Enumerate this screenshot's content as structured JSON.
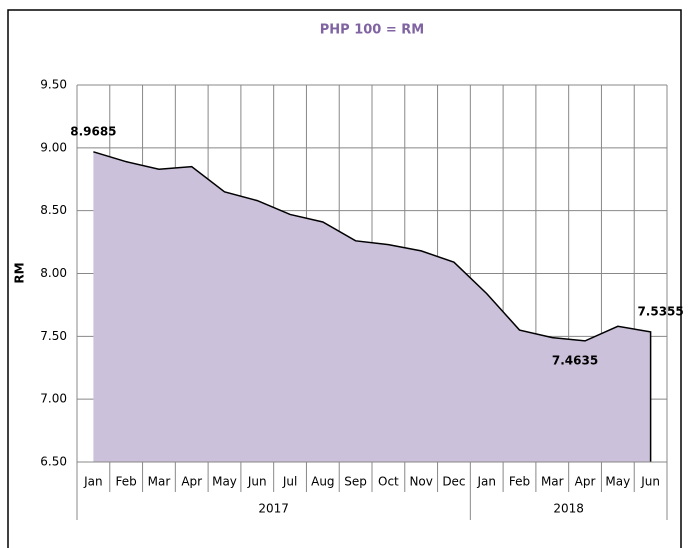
{
  "chart_data": {
    "type": "area",
    "title": "PHP 100 = RM",
    "y_label": "RM",
    "category_groups": [
      {
        "name": "2017",
        "categories": [
          "Jan",
          "Feb",
          "Mar",
          "Apr",
          "May",
          "Jun",
          "Jul",
          "Aug",
          "Sep",
          "Oct",
          "Nov",
          "Dec"
        ]
      },
      {
        "name": "2018",
        "categories": [
          "Jan",
          "Feb",
          "Mar",
          "Apr",
          "May",
          "Jun"
        ]
      }
    ],
    "values": [
      8.9685,
      8.89,
      8.83,
      8.85,
      8.65,
      8.58,
      8.47,
      8.41,
      8.26,
      8.23,
      8.18,
      8.09,
      7.84,
      7.55,
      7.49,
      7.4635,
      7.58,
      7.5355
    ],
    "value_labels": [
      "8.9685",
      null,
      null,
      null,
      null,
      null,
      null,
      null,
      null,
      null,
      null,
      null,
      null,
      null,
      null,
      "7.4635",
      null,
      "7.5355"
    ],
    "color": "#ccc1da",
    "line_color": "#000000",
    "ylim": [
      6.5,
      9.5
    ],
    "yticks": [
      {
        "value": 6.5,
        "label": "6.50"
      },
      {
        "value": 7,
        "label": "7.00"
      },
      {
        "value": 7.5,
        "label": "7.50"
      },
      {
        "value": 8,
        "label": "8.00"
      },
      {
        "value": 8.5,
        "label": "8.50"
      },
      {
        "value": 9,
        "label": "9.00"
      },
      {
        "value": 9.5,
        "label": "9.50"
      }
    ],
    "grid": true
  }
}
